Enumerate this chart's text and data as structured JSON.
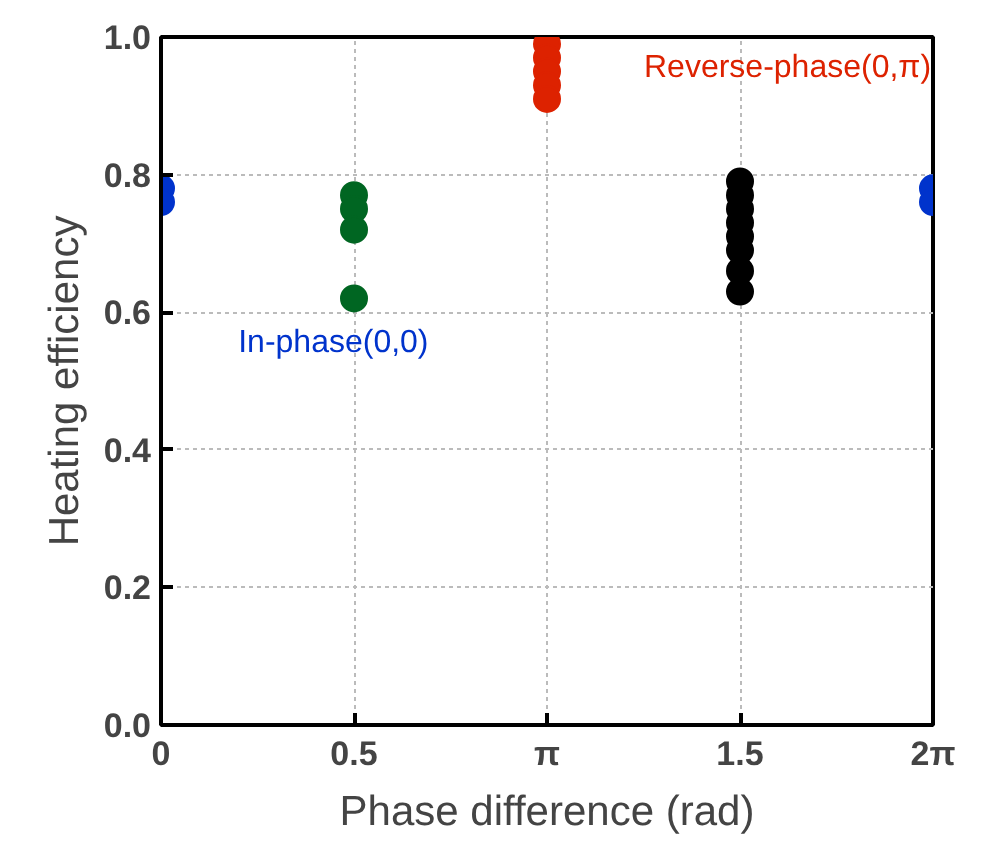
{
  "chart_data": {
    "type": "scatter",
    "xlabel": "Phase difference (rad)",
    "ylabel": "Heating efficiency",
    "categories": [
      "0",
      "0.5",
      "π",
      "1.5",
      "2π"
    ],
    "ylim": [
      0,
      1
    ],
    "yticks": [
      {
        "value": 0,
        "label": "0.0"
      },
      0.2,
      0.4,
      0.6,
      0.8,
      {
        "value": 1,
        "label": "1.0"
      }
    ],
    "grid": true,
    "marker": "circle",
    "series": [
      {
        "name": "In-phase(0,0)",
        "color": "#0033cc",
        "x": [
          "0",
          "0",
          "2π",
          "2π"
        ],
        "values": [
          0.78,
          0.76,
          0.78,
          0.76
        ]
      },
      {
        "color": "#006622",
        "x": [
          "0.5",
          "0.5",
          "0.5",
          "0.5"
        ],
        "values": [
          0.77,
          0.75,
          0.72,
          0.62
        ]
      },
      {
        "name": "Reverse-phase(0,π)",
        "color": "#dd2200",
        "x": [
          "π",
          "π",
          "π",
          "π",
          "π"
        ],
        "values": [
          0.99,
          0.97,
          0.95,
          0.93,
          0.91
        ]
      },
      {
        "color": "#000000",
        "x": [
          "1.5",
          "1.5",
          "1.5",
          "1.5",
          "1.5",
          "1.5",
          "1.5",
          "1.5"
        ],
        "values": [
          0.79,
          0.77,
          0.75,
          0.73,
          0.71,
          0.69,
          0.66,
          0.63
        ]
      }
    ]
  }
}
